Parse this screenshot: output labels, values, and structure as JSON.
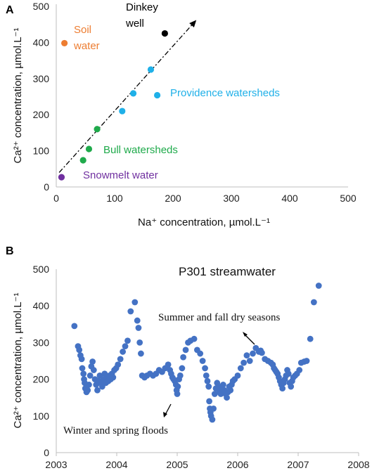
{
  "colors": {
    "soil": "#ed7d31",
    "dinkey": "#000000",
    "providence": "#1fb0e8",
    "bull": "#1faa4b",
    "snowmelt": "#7030a0",
    "stream": "#4472c4"
  },
  "chart_data": [
    {
      "panel": "A",
      "type": "scatter",
      "xlabel": "Na⁺ concentration, µmol.L⁻¹",
      "ylabel": "Ca²⁺ concentration, µmol.L⁻¹",
      "xlim": [
        0,
        500
      ],
      "ylim": [
        0,
        500
      ],
      "xticks": [
        "0",
        "100",
        "200",
        "300",
        "400",
        "500"
      ],
      "yticks": [
        "0",
        "100",
        "200",
        "300",
        "400",
        "500"
      ],
      "grid": false,
      "series": [
        {
          "name": "Soil water",
          "x": [
            14
          ],
          "y": [
            398
          ]
        },
        {
          "name": "Dinkey well",
          "x": [
            186
          ],
          "y": [
            425
          ]
        },
        {
          "name": "Providence watersheds",
          "x": [
            113,
            132,
            162,
            173
          ],
          "y": [
            210,
            259,
            325,
            254
          ]
        },
        {
          "name": "Bull watersheds",
          "x": [
            46,
            56,
            70
          ],
          "y": [
            74,
            105,
            160
          ]
        },
        {
          "name": "Snowmelt water",
          "x": [
            9
          ],
          "y": [
            27
          ]
        }
      ],
      "labels": {
        "soil_line1": "Soil",
        "soil_line2": "water",
        "dinkey_line1": "Dinkey",
        "dinkey_line2": "well",
        "providence": "Providence watersheds",
        "bull": "Bull watersheds",
        "snowmelt": "Snowmelt water"
      },
      "trend_line": {
        "x": [
          5,
          240
        ],
        "y": [
          40,
          462
        ]
      }
    },
    {
      "panel": "B",
      "type": "scatter",
      "title": "P301 streamwater",
      "xlabel": "",
      "ylabel": "Ca²⁺ concentration, µmol.L⁻¹",
      "xlim": [
        2003,
        2008
      ],
      "ylim": [
        0,
        500
      ],
      "xticks": [
        "2003",
        "2004",
        "2005",
        "2006",
        "2007",
        "2008"
      ],
      "yticks": [
        "0",
        "100",
        "200",
        "300",
        "400",
        "500"
      ],
      "grid": false,
      "annotations": {
        "summer": "Summer and fall dry seasons",
        "winter": "Winter and spring floods"
      },
      "series": [
        {
          "name": "",
          "points": [
            [
              2003.3,
              345
            ],
            [
              2003.36,
              290
            ],
            [
              2003.38,
              280
            ],
            [
              2003.4,
              265
            ],
            [
              2003.42,
              255
            ],
            [
              2003.43,
              230
            ],
            [
              2003.45,
              215
            ],
            [
              2003.46,
              200
            ],
            [
              2003.47,
              190
            ],
            [
              2003.48,
              175
            ],
            [
              2003.5,
              165
            ],
            [
              2003.52,
              170
            ],
            [
              2003.54,
              185
            ],
            [
              2003.56,
              210
            ],
            [
              2003.58,
              235
            ],
            [
              2003.6,
              248
            ],
            [
              2003.62,
              225
            ],
            [
              2003.64,
              200
            ],
            [
              2003.66,
              185
            ],
            [
              2003.68,
              170
            ],
            [
              2003.7,
              195
            ],
            [
              2003.72,
              210
            ],
            [
              2003.74,
              190
            ],
            [
              2003.76,
              180
            ],
            [
              2003.78,
              200
            ],
            [
              2003.8,
              215
            ],
            [
              2003.82,
              190
            ],
            [
              2003.84,
              205
            ],
            [
              2003.86,
              195
            ],
            [
              2003.88,
              210
            ],
            [
              2003.9,
              200
            ],
            [
              2003.92,
              215
            ],
            [
              2003.94,
              205
            ],
            [
              2003.96,
              225
            ],
            [
              2003.99,
              230
            ],
            [
              2004.02,
              240
            ],
            [
              2004.06,
              255
            ],
            [
              2004.1,
              275
            ],
            [
              2004.14,
              290
            ],
            [
              2004.18,
              305
            ],
            [
              2004.23,
              385
            ],
            [
              2004.3,
              410
            ],
            [
              2004.34,
              360
            ],
            [
              2004.36,
              340
            ],
            [
              2004.38,
              300
            ],
            [
              2004.4,
              270
            ],
            [
              2004.42,
              210
            ],
            [
              2004.46,
              205
            ],
            [
              2004.5,
              210
            ],
            [
              2004.55,
              215
            ],
            [
              2004.6,
              210
            ],
            [
              2004.65,
              215
            ],
            [
              2004.7,
              225
            ],
            [
              2004.75,
              220
            ],
            [
              2004.8,
              230
            ],
            [
              2004.85,
              240
            ],
            [
              2004.88,
              225
            ],
            [
              2004.9,
              215
            ],
            [
              2004.92,
              205
            ],
            [
              2004.94,
              200
            ],
            [
              2004.96,
              195
            ],
            [
              2004.98,
              185
            ],
            [
              2004.99,
              170
            ],
            [
              2005.0,
              160
            ],
            [
              2005.01,
              180
            ],
            [
              2005.03,
              200
            ],
            [
              2005.05,
              210
            ],
            [
              2005.08,
              230
            ],
            [
              2005.1,
              260
            ],
            [
              2005.14,
              280
            ],
            [
              2005.18,
              300
            ],
            [
              2005.22,
              305
            ],
            [
              2005.28,
              310
            ],
            [
              2005.33,
              280
            ],
            [
              2005.38,
              270
            ],
            [
              2005.42,
              250
            ],
            [
              2005.46,
              230
            ],
            [
              2005.48,
              210
            ],
            [
              2005.5,
              195
            ],
            [
              2005.52,
              180
            ],
            [
              2005.53,
              140
            ],
            [
              2005.54,
              120
            ],
            [
              2005.55,
              110
            ],
            [
              2005.56,
              100
            ],
            [
              2005.58,
              90
            ],
            [
              2005.6,
              120
            ],
            [
              2005.62,
              160
            ],
            [
              2005.64,
              175
            ],
            [
              2005.66,
              190
            ],
            [
              2005.68,
              180
            ],
            [
              2005.7,
              165
            ],
            [
              2005.72,
              160
            ],
            [
              2005.74,
              175
            ],
            [
              2005.76,
              185
            ],
            [
              2005.78,
              170
            ],
            [
              2005.8,
              160
            ],
            [
              2005.82,
              150
            ],
            [
              2005.84,
              165
            ],
            [
              2005.86,
              180
            ],
            [
              2005.88,
              170
            ],
            [
              2005.9,
              185
            ],
            [
              2005.92,
              195
            ],
            [
              2005.95,
              200
            ],
            [
              2006.0,
              210
            ],
            [
              2006.05,
              230
            ],
            [
              2006.1,
              245
            ],
            [
              2006.15,
              265
            ],
            [
              2006.2,
              250
            ],
            [
              2006.25,
              270
            ],
            [
              2006.3,
              285
            ],
            [
              2006.35,
              275
            ],
            [
              2006.38,
              278
            ],
            [
              2006.4,
              272
            ],
            [
              2006.45,
              255
            ],
            [
              2006.5,
              250
            ],
            [
              2006.55,
              245
            ],
            [
              2006.58,
              240
            ],
            [
              2006.6,
              230
            ],
            [
              2006.62,
              225
            ],
            [
              2006.64,
              220
            ],
            [
              2006.66,
              215
            ],
            [
              2006.68,
              205
            ],
            [
              2006.7,
              195
            ],
            [
              2006.72,
              185
            ],
            [
              2006.74,
              175
            ],
            [
              2006.76,
              190
            ],
            [
              2006.78,
              200
            ],
            [
              2006.8,
              210
            ],
            [
              2006.82,
              225
            ],
            [
              2006.84,
              215
            ],
            [
              2006.86,
              190
            ],
            [
              2006.88,
              180
            ],
            [
              2006.9,
              195
            ],
            [
              2006.92,
              205
            ],
            [
              2006.95,
              210
            ],
            [
              2006.98,
              215
            ],
            [
              2007.02,
              225
            ],
            [
              2007.05,
              245
            ],
            [
              2007.1,
              248
            ],
            [
              2007.14,
              250
            ],
            [
              2007.2,
              310
            ],
            [
              2007.26,
              410
            ],
            [
              2007.34,
              455
            ]
          ]
        }
      ]
    }
  ]
}
